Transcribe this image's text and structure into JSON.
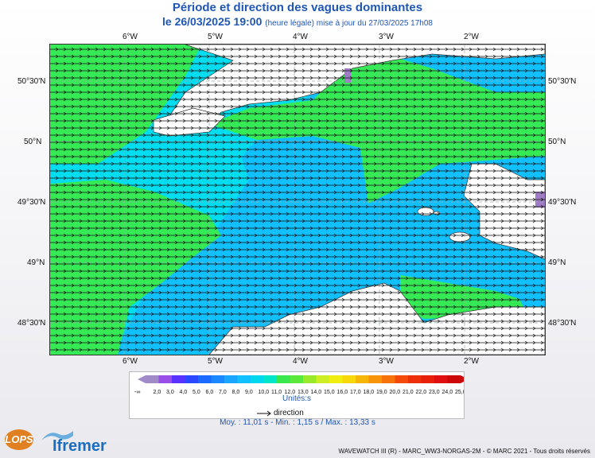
{
  "header": {
    "title": "Période et direction des vagues dominantes",
    "date_line": "le 26/03/2025 19:00",
    "update_note": "(heure légale) mise à jour du 27/03/2025 17h08"
  },
  "map": {
    "lon_labels": [
      "6°W",
      "5°W",
      "4°W",
      "3°W",
      "2°W"
    ],
    "lat_labels": [
      "50°30'N",
      "50°N",
      "49°30'N",
      "49°N",
      "48°30'N"
    ],
    "colors": {
      "sea_cyan": "#00ddf0",
      "sea_light_blue": "#11c0ff",
      "sea_green": "#35ea55",
      "land": "#ffffff",
      "purple": "#a07cc7"
    }
  },
  "legend": {
    "left_cap": "<",
    "right_cap": ">",
    "low_end": "2,0",
    "ticks": [
      "2,0",
      "3,0",
      "4,0",
      "5,0",
      "6,0",
      "7,0",
      "8,0",
      "9,0",
      "10,0",
      "11,0",
      "12,0",
      "13,0",
      "14,0",
      "15,0",
      "16,0",
      "17,0",
      "18,0",
      "19,0",
      "20,0",
      "21,0",
      "22,0",
      "23,0",
      "24,0",
      "25,0"
    ],
    "high_end": "∞",
    "colors": [
      "#a08ac8",
      "#9a4ee8",
      "#5a32ff",
      "#2a48ff",
      "#1a6aff",
      "#1a88ff",
      "#1aa6ff",
      "#11c0ff",
      "#00d8f0",
      "#00e6c8",
      "#3ae84e",
      "#5ae83a",
      "#9aea2a",
      "#ccee22",
      "#f0ee10",
      "#f8d80a",
      "#f8b60a",
      "#f8940a",
      "#f8720a",
      "#f44a0a",
      "#ee300a",
      "#e8200a",
      "#e01010",
      "#cc0808"
    ],
    "units_label": "Unités:s",
    "direction_label": "direction",
    "direction_icon": "arrow-right-icon"
  },
  "stats": {
    "text": "Moy. : 11,01 s   -   Min. : 1,15 s / Max. : 13,33 s"
  },
  "footer": {
    "credit": "WAVEWATCH III (R) - MARC_WW3-NORGAS-2M - © MARC 2021 - Tous droits réservés",
    "logo_lops": "LOPS",
    "logo_ifremer": "Ifremer"
  }
}
